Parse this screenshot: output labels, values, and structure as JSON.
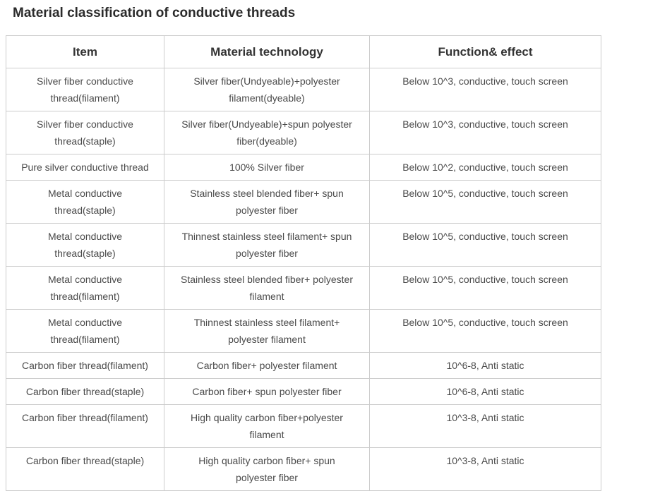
{
  "page_title": "Material classification of conductive threads",
  "table": {
    "columns": [
      "Item",
      "Material technology",
      "Function& effect"
    ],
    "rows": [
      {
        "item": "Silver fiber conductive\nthread(filament)",
        "material_technology": "Silver fiber(Undyeable)+polyester\nfilament(dyeable)",
        "function_effect": "Below 10^3, conductive, touch screen"
      },
      {
        "item": "Silver fiber conductive\nthread(staple)",
        "material_technology": "Silver fiber(Undyeable)+spun polyester\nfiber(dyeable)",
        "function_effect": "Below 10^3, conductive, touch screen"
      },
      {
        "item": "Pure silver conductive thread",
        "material_technology": "100% Silver fiber",
        "function_effect": "Below 10^2, conductive, touch screen"
      },
      {
        "item": "Metal conductive\nthread(staple)",
        "material_technology": "Stainless steel blended fiber+ spun\npolyester fiber",
        "function_effect": "Below 10^5, conductive, touch screen"
      },
      {
        "item": "Metal conductive\nthread(staple)",
        "material_technology": "Thinnest stainless steel filament+ spun\npolyester fiber",
        "function_effect": "Below 10^5, conductive, touch screen"
      },
      {
        "item": "Metal conductive\nthread(filament)",
        "material_technology": "Stainless steel blended fiber+ polyester\nfilament",
        "function_effect": "Below 10^5, conductive, touch screen"
      },
      {
        "item": "Metal conductive\nthread(filament)",
        "material_technology": "Thinnest stainless steel filament+\npolyester filament",
        "function_effect": "Below 10^5, conductive, touch screen"
      },
      {
        "item": "Carbon fiber thread(filament)",
        "material_technology": "Carbon fiber+ polyester filament",
        "function_effect": "10^6-8, Anti static"
      },
      {
        "item": "Carbon fiber thread(staple)",
        "material_technology": "Carbon fiber+ spun polyester fiber",
        "function_effect": "10^6-8, Anti static"
      },
      {
        "item": "Carbon fiber thread(filament)",
        "material_technology": "High quality carbon fiber+polyester\nfilament",
        "function_effect": "10^3-8, Anti static"
      },
      {
        "item": "Carbon fiber thread(staple)",
        "material_technology": "High quality carbon fiber+ spun\npolyester fiber",
        "function_effect": "10^3-8, Anti static"
      }
    ]
  },
  "colors": {
    "title_text": "#2b2b2b",
    "header_text": "#333333",
    "cell_text": "#4a4a4a",
    "table_border": "#cccccc",
    "background": "#ffffff"
  }
}
